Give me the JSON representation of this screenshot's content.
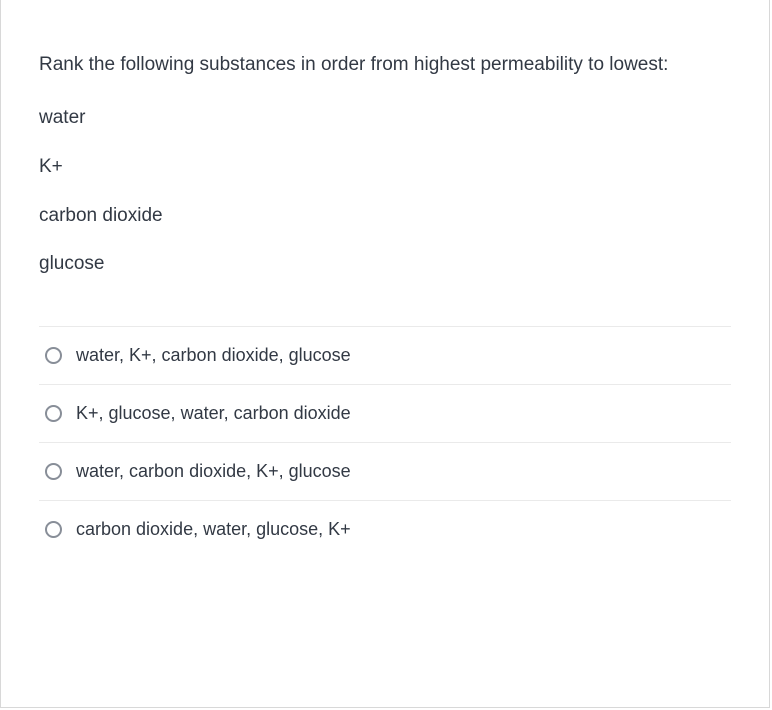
{
  "question": {
    "prompt": "Rank the following substances in order from highest permeability to lowest:",
    "items": [
      "water",
      "K+",
      "carbon dioxide",
      "glucose"
    ]
  },
  "options": [
    {
      "label": "water, K+, carbon dioxide, glucose"
    },
    {
      "label": "K+, glucose, water, carbon dioxide"
    },
    {
      "label": "water, carbon dioxide, K+, glucose"
    },
    {
      "label": "carbon dioxide, water, glucose, K+"
    }
  ],
  "styles": {
    "text_color": "#323944",
    "border_color": "#d8d8d8",
    "divider_color": "#eaeaea",
    "radio_border_color": "#888e98",
    "background_color": "#ffffff",
    "question_fontsize": 19,
    "option_fontsize": 18
  }
}
